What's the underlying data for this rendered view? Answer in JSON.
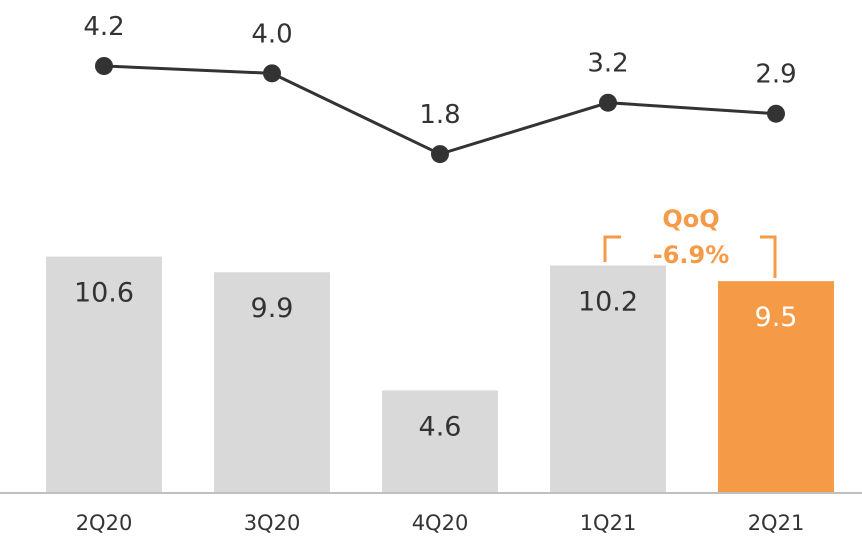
{
  "chart_data": [
    {
      "type": "bar",
      "categories": [
        "2Q20",
        "3Q20",
        "4Q20",
        "1Q21",
        "2Q21"
      ],
      "values": [
        10.6,
        9.9,
        4.6,
        10.2,
        9.5
      ],
      "highlight_index": 4,
      "colors": {
        "bar": "#d9d9d9",
        "highlight": "#f59a46",
        "label": "#333333",
        "highlight_label": "#ffffff",
        "axis": "#bfbfbf"
      },
      "annotation": {
        "line1": "QoQ",
        "line2": "-6.9%",
        "color": "#f59a46"
      }
    },
    {
      "type": "line",
      "categories": [
        "2Q20",
        "3Q20",
        "4Q20",
        "1Q21",
        "2Q21"
      ],
      "values": [
        4.2,
        4.0,
        1.8,
        3.2,
        2.9
      ],
      "colors": {
        "line": "#333333"
      }
    }
  ]
}
